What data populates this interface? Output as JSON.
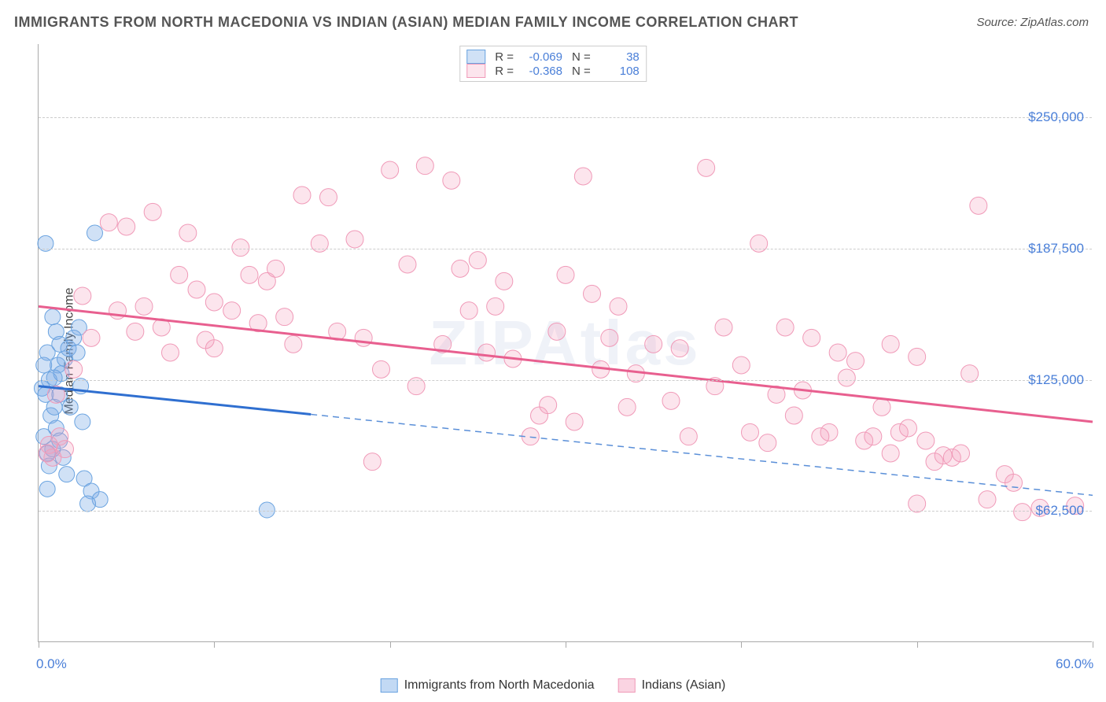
{
  "title": "IMMIGRANTS FROM NORTH MACEDONIA VS INDIAN (ASIAN) MEDIAN FAMILY INCOME CORRELATION CHART",
  "source": "Source: ZipAtlas.com",
  "watermark": "ZIPAtlas",
  "ylabel": "Median Family Income",
  "chart": {
    "type": "scatter",
    "xlim": [
      0,
      60
    ],
    "ylim": [
      0,
      285000
    ],
    "ytick_values": [
      62500,
      125000,
      187500,
      250000
    ],
    "ytick_labels": [
      "$62,500",
      "$125,000",
      "$187,500",
      "$250,000"
    ],
    "xtick_values": [
      0,
      10,
      20,
      30,
      40,
      50,
      60
    ],
    "x_axis_left_label": "0.0%",
    "x_axis_right_label": "60.0%",
    "grid_color": "#cccccc",
    "axis_color": "#aaaaaa",
    "background_color": "#ffffff",
    "series": [
      {
        "name": "Immigrants from North Macedonia",
        "short": "blue",
        "fill": "rgba(120,170,230,0.35)",
        "stroke": "#6aa3e0",
        "line_color": "#2f6fd0",
        "line_dash_color": "#5a8fd8",
        "R": "-0.069",
        "N": "38",
        "regression": {
          "x1": 0,
          "y1": 122000,
          "x2": 60,
          "y2": 70000,
          "solid_until_x": 15.5
        },
        "marker_radius": 10,
        "points": [
          [
            0.2,
            121000
          ],
          [
            0.4,
            118000
          ],
          [
            0.6,
            125000
          ],
          [
            0.4,
            190000
          ],
          [
            3.2,
            195000
          ],
          [
            0.8,
            155000
          ],
          [
            1.0,
            148000
          ],
          [
            1.2,
            142000
          ],
          [
            0.3,
            98000
          ],
          [
            0.5,
            90000
          ],
          [
            0.7,
            108000
          ],
          [
            0.9,
            112000
          ],
          [
            1.1,
            132000
          ],
          [
            1.3,
            128000
          ],
          [
            1.5,
            135000
          ],
          [
            1.7,
            140000
          ],
          [
            0.6,
            84000
          ],
          [
            0.8,
            92000
          ],
          [
            1.0,
            102000
          ],
          [
            1.2,
            96000
          ],
          [
            1.4,
            88000
          ],
          [
            2.0,
            145000
          ],
          [
            2.2,
            138000
          ],
          [
            2.4,
            122000
          ],
          [
            0.5,
            73000
          ],
          [
            1.6,
            80000
          ],
          [
            2.6,
            78000
          ],
          [
            3.0,
            72000
          ],
          [
            3.5,
            68000
          ],
          [
            2.8,
            66000
          ],
          [
            13.0,
            63000
          ],
          [
            2.3,
            150000
          ],
          [
            0.3,
            132000
          ],
          [
            0.5,
            138000
          ],
          [
            0.9,
            126000
          ],
          [
            1.2,
            118000
          ],
          [
            1.8,
            112000
          ],
          [
            2.5,
            105000
          ]
        ]
      },
      {
        "name": "Indians (Asian)",
        "short": "pink",
        "fill": "rgba(245,160,190,0.28)",
        "stroke": "#f09ab8",
        "line_color": "#e85f8f",
        "R": "-0.368",
        "N": "108",
        "regression": {
          "x1": 0,
          "y1": 160000,
          "x2": 60,
          "y2": 105000,
          "solid_until_x": 60
        },
        "marker_radius": 11,
        "points": [
          [
            1.0,
            118000
          ],
          [
            1.2,
            98000
          ],
          [
            1.5,
            92000
          ],
          [
            0.6,
            94000
          ],
          [
            0.8,
            88000
          ],
          [
            2.0,
            130000
          ],
          [
            2.5,
            165000
          ],
          [
            3.0,
            145000
          ],
          [
            4.0,
            200000
          ],
          [
            6.0,
            160000
          ],
          [
            5.0,
            198000
          ],
          [
            7.0,
            150000
          ],
          [
            8.0,
            175000
          ],
          [
            9.0,
            168000
          ],
          [
            10.0,
            162000
          ],
          [
            11.0,
            158000
          ],
          [
            12.0,
            175000
          ],
          [
            13.0,
            172000
          ],
          [
            13.5,
            178000
          ],
          [
            14.0,
            155000
          ],
          [
            15.0,
            213000
          ],
          [
            16.0,
            190000
          ],
          [
            17.0,
            148000
          ],
          [
            18.0,
            192000
          ],
          [
            19.0,
            86000
          ],
          [
            20.0,
            225000
          ],
          [
            21.0,
            180000
          ],
          [
            22.0,
            227000
          ],
          [
            23.0,
            142000
          ],
          [
            23.5,
            220000
          ],
          [
            24.0,
            178000
          ],
          [
            25.0,
            182000
          ],
          [
            26.0,
            160000
          ],
          [
            26.5,
            172000
          ],
          [
            27.0,
            135000
          ],
          [
            28.0,
            98000
          ],
          [
            28.5,
            108000
          ],
          [
            29.0,
            113000
          ],
          [
            30.0,
            175000
          ],
          [
            31.0,
            222000
          ],
          [
            31.5,
            166000
          ],
          [
            32.0,
            130000
          ],
          [
            32.5,
            145000
          ],
          [
            33.0,
            160000
          ],
          [
            34.0,
            128000
          ],
          [
            35.0,
            142000
          ],
          [
            36.0,
            115000
          ],
          [
            36.5,
            140000
          ],
          [
            37.0,
            98000
          ],
          [
            38.0,
            226000
          ],
          [
            38.5,
            122000
          ],
          [
            39.0,
            150000
          ],
          [
            40.0,
            132000
          ],
          [
            40.5,
            100000
          ],
          [
            41.0,
            190000
          ],
          [
            41.5,
            95000
          ],
          [
            42.0,
            118000
          ],
          [
            43.0,
            108000
          ],
          [
            43.5,
            120000
          ],
          [
            44.0,
            145000
          ],
          [
            45.0,
            100000
          ],
          [
            45.5,
            138000
          ],
          [
            46.0,
            126000
          ],
          [
            47.0,
            96000
          ],
          [
            47.5,
            98000
          ],
          [
            48.0,
            112000
          ],
          [
            48.5,
            142000
          ],
          [
            49.0,
            100000
          ],
          [
            49.5,
            102000
          ],
          [
            50.0,
            136000
          ],
          [
            50.5,
            96000
          ],
          [
            51.0,
            86000
          ],
          [
            51.5,
            89000
          ],
          [
            52.0,
            88000
          ],
          [
            52.5,
            90000
          ],
          [
            53.0,
            128000
          ],
          [
            53.5,
            208000
          ],
          [
            54.0,
            68000
          ],
          [
            55.0,
            80000
          ],
          [
            55.5,
            76000
          ],
          [
            56.0,
            62000
          ],
          [
            57.0,
            64000
          ],
          [
            59.0,
            65000
          ],
          [
            50.0,
            66000
          ],
          [
            10.0,
            140000
          ],
          [
            11.5,
            188000
          ],
          [
            4.5,
            158000
          ],
          [
            6.5,
            205000
          ],
          [
            8.5,
            195000
          ],
          [
            12.5,
            152000
          ],
          [
            16.5,
            212000
          ],
          [
            18.5,
            145000
          ],
          [
            24.5,
            158000
          ],
          [
            29.5,
            148000
          ],
          [
            33.5,
            112000
          ],
          [
            42.5,
            150000
          ],
          [
            5.5,
            148000
          ],
          [
            7.5,
            138000
          ],
          [
            9.5,
            144000
          ],
          [
            14.5,
            142000
          ],
          [
            19.5,
            130000
          ],
          [
            21.5,
            122000
          ],
          [
            25.5,
            138000
          ],
          [
            30.5,
            105000
          ],
          [
            44.5,
            98000
          ],
          [
            46.5,
            134000
          ],
          [
            48.5,
            90000
          ],
          [
            0.5,
            90000
          ]
        ]
      }
    ]
  },
  "legend_bottom": [
    {
      "label": "Immigrants from North Macedonia",
      "fill": "rgba(120,170,230,0.45)",
      "stroke": "#6aa3e0"
    },
    {
      "label": "Indians (Asian)",
      "fill": "rgba(245,160,190,0.45)",
      "stroke": "#f09ab8"
    }
  ]
}
